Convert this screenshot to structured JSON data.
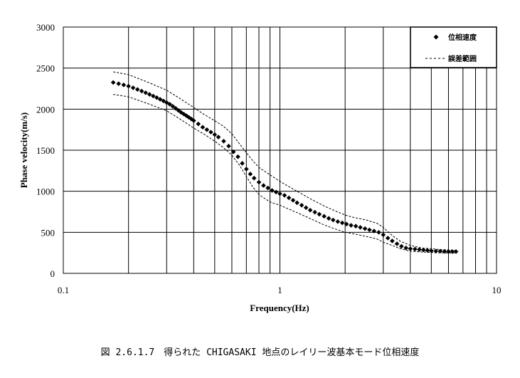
{
  "chart_data": {
    "type": "scatter",
    "x_scale": "log",
    "xlabel": "Frequency(Hz)",
    "ylabel": "Phase velocity(m/s)",
    "xlim": [
      0.1,
      10
    ],
    "ylim": [
      0,
      3000
    ],
    "x_tick_labels": [
      "0.1",
      "1",
      "10"
    ],
    "y_ticks": [
      0,
      500,
      1000,
      1500,
      2000,
      2500,
      3000
    ],
    "y_tick_labels": [
      "0",
      "500",
      "1000",
      "1500",
      "2000",
      "2500",
      "3000"
    ],
    "grid": true,
    "legend_position": "top-right",
    "legend": {
      "points_label": "位相速度",
      "range_label": "誤差範囲"
    },
    "colors": {
      "markers": "#000000",
      "range_lines": "#000000",
      "grid": "#000000"
    },
    "series": [
      {
        "name": "位相速度",
        "style": "diamond-markers",
        "x": [
          0.17,
          0.18,
          0.19,
          0.2,
          0.21,
          0.22,
          0.23,
          0.24,
          0.25,
          0.26,
          0.27,
          0.28,
          0.29,
          0.3,
          0.31,
          0.32,
          0.33,
          0.34,
          0.35,
          0.36,
          0.37,
          0.38,
          0.39,
          0.4,
          0.42,
          0.44,
          0.46,
          0.48,
          0.5,
          0.52,
          0.55,
          0.58,
          0.61,
          0.64,
          0.67,
          0.7,
          0.73,
          0.76,
          0.8,
          0.84,
          0.88,
          0.92,
          0.96,
          1.0,
          1.05,
          1.1,
          1.15,
          1.2,
          1.26,
          1.32,
          1.38,
          1.45,
          1.52,
          1.6,
          1.68,
          1.76,
          1.85,
          1.94,
          2.03,
          2.13,
          2.24,
          2.35,
          2.47,
          2.59,
          2.72,
          2.86,
          3.0,
          3.15,
          3.3,
          3.47,
          3.64,
          3.82,
          4.0,
          4.2,
          4.4,
          4.6,
          4.8,
          5.0,
          5.25,
          5.5,
          5.75,
          6.0,
          6.25,
          6.5
        ],
        "y": [
          2325,
          2310,
          2295,
          2280,
          2260,
          2240,
          2220,
          2200,
          2180,
          2160,
          2140,
          2120,
          2100,
          2080,
          2060,
          2035,
          2010,
          1985,
          1960,
          1940,
          1920,
          1900,
          1880,
          1860,
          1820,
          1780,
          1750,
          1720,
          1690,
          1660,
          1610,
          1550,
          1480,
          1420,
          1340,
          1270,
          1210,
          1160,
          1110,
          1070,
          1040,
          1010,
          990,
          970,
          950,
          920,
          890,
          860,
          830,
          800,
          770,
          745,
          720,
          695,
          670,
          650,
          630,
          615,
          600,
          585,
          575,
          560,
          545,
          530,
          515,
          500,
          470,
          430,
          395,
          360,
          330,
          310,
          300,
          295,
          290,
          285,
          280,
          275,
          270,
          270,
          268,
          265,
          265,
          265
        ]
      },
      {
        "name": "誤差範囲",
        "style": "dashed-upper",
        "x": [
          0.17,
          0.2,
          0.25,
          0.3,
          0.35,
          0.4,
          0.45,
          0.5,
          0.55,
          0.6,
          0.65,
          0.7,
          0.75,
          0.8,
          0.9,
          1.0,
          1.2,
          1.4,
          1.6,
          1.8,
          2.0,
          2.2,
          2.5,
          2.8,
          3.0,
          3.3,
          3.6,
          4.0,
          4.5,
          5.0,
          5.5,
          6.0,
          6.5
        ],
        "y": [
          2455,
          2420,
          2320,
          2230,
          2120,
          2020,
          1930,
          1860,
          1790,
          1700,
          1580,
          1470,
          1370,
          1290,
          1200,
          1120,
          1000,
          900,
          820,
          760,
          710,
          680,
          650,
          610,
          560,
          460,
          390,
          340,
          310,
          300,
          290,
          285,
          280
        ]
      },
      {
        "name": "誤差範囲",
        "style": "dashed-lower",
        "x": [
          0.17,
          0.2,
          0.25,
          0.3,
          0.35,
          0.4,
          0.45,
          0.5,
          0.55,
          0.6,
          0.65,
          0.7,
          0.75,
          0.8,
          0.9,
          1.0,
          1.2,
          1.4,
          1.6,
          1.8,
          2.0,
          2.2,
          2.5,
          2.8,
          3.0,
          3.3,
          3.6,
          4.0,
          4.5,
          5.0,
          5.5,
          6.0,
          6.5
        ],
        "y": [
          2180,
          2150,
          2060,
          1980,
          1870,
          1770,
          1690,
          1610,
          1530,
          1440,
          1320,
          1180,
          1050,
          960,
          870,
          830,
          740,
          660,
          590,
          540,
          500,
          480,
          450,
          420,
          380,
          340,
          300,
          270,
          260,
          255,
          250,
          250,
          250
        ]
      }
    ]
  },
  "caption": "図 2.6.1.7　得られた CHIGASAKI 地点のレイリー波基本モード位相速度"
}
